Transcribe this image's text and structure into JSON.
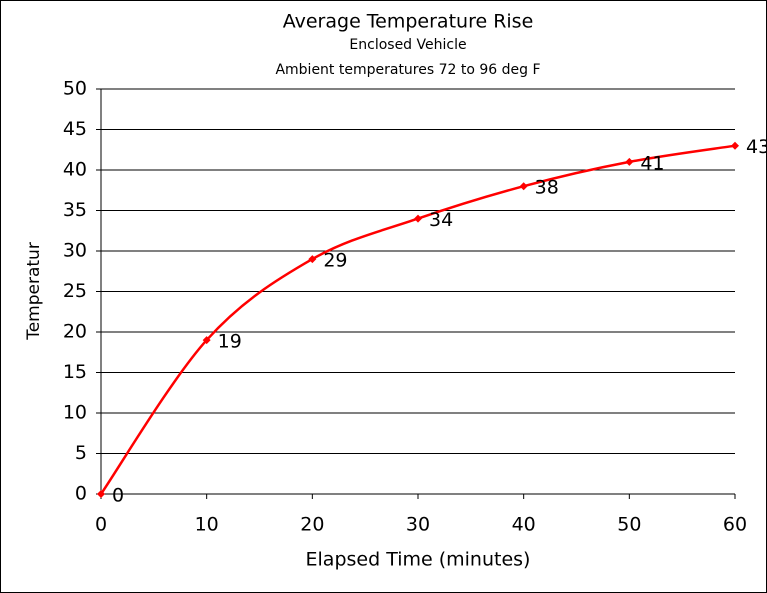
{
  "chart_data": {
    "type": "line",
    "title": "Average Temperature Rise",
    "subtitles": [
      "Enclosed Vehicle",
      "Ambient temperatures 72 to 96 deg F"
    ],
    "x_label": "Elapsed Time (minutes)",
    "y_label": "Temperatur",
    "x": [
      0,
      10,
      20,
      30,
      40,
      50,
      60
    ],
    "series": [
      {
        "name": "Temperatur",
        "color": "#ff0000",
        "values": [
          0,
          19,
          29,
          34,
          38,
          41,
          43
        ]
      }
    ],
    "xlim": [
      0,
      60
    ],
    "xticks": [
      0,
      10,
      20,
      30,
      40,
      50,
      60
    ],
    "ylim": [
      0,
      50
    ],
    "yticks": [
      0,
      5,
      10,
      15,
      20,
      25,
      30,
      35,
      40,
      45,
      50
    ],
    "grid": true,
    "smooth": true,
    "data_labels": true
  }
}
